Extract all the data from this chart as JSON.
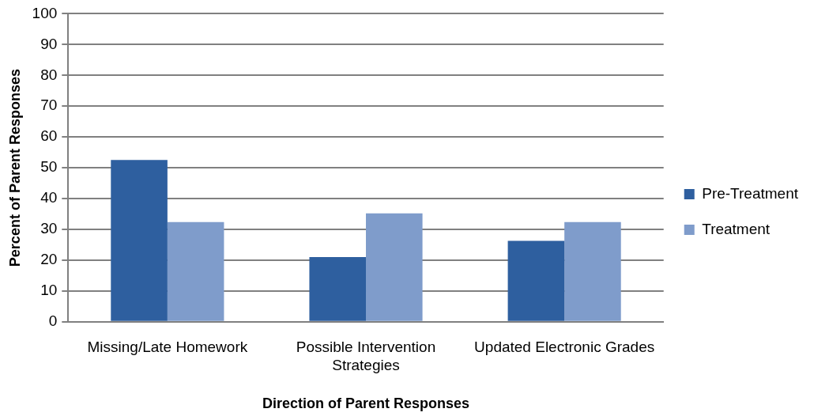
{
  "chart_data": {
    "type": "bar",
    "xlabel": "Direction of Parent Responses",
    "ylabel": "Percent of Parent Responses",
    "categories": [
      "Missing/Late Homework",
      "Possible Intervention Strategies",
      "Updated Electronic Grades"
    ],
    "series": [
      {
        "name": "Pre-Treatment",
        "color": "#2e5f9f",
        "values": [
          52.5,
          21.0,
          26.3
        ]
      },
      {
        "name": "Treatment",
        "color": "#7f9ccb",
        "values": [
          32.4,
          35.2,
          32.4
        ]
      }
    ],
    "ylim": [
      0,
      100
    ],
    "yticks": [
      0,
      10,
      20,
      30,
      40,
      50,
      60,
      70,
      80,
      90,
      100
    ],
    "grid": "y",
    "legend": "right"
  }
}
